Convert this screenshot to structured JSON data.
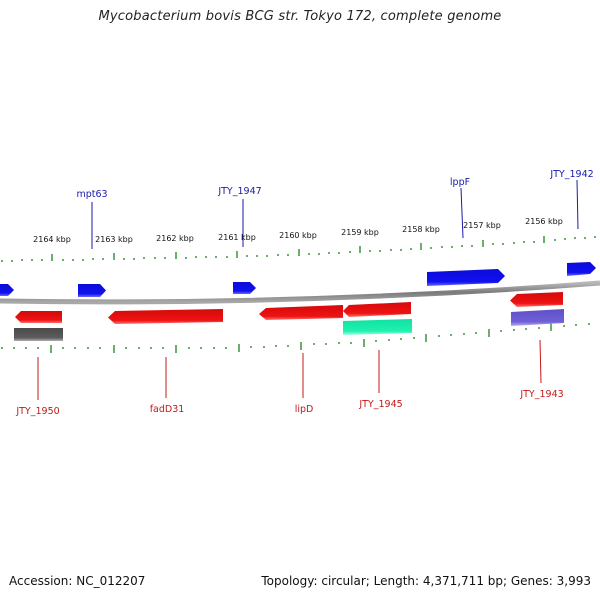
{
  "title": "Mycobacterium bovis BCG str. Tokyo 172, complete genome",
  "footer": {
    "accession": "Accession: NC_012207",
    "summary": "Topology: circular; Length: 4,371,711 bp; Genes: 3,993"
  },
  "ruler": {
    "labels": [
      "2164 kbp",
      "2163 kbp",
      "2162 kbp",
      "2161 kbp",
      "2160 kbp",
      "2159 kbp",
      "2158 kbp",
      "2157 kbp",
      "2156 kbp"
    ]
  },
  "colors": {
    "forward_gene": "#1010e0",
    "reverse_gene": "#e01010",
    "forward_label": "#1a1aa8",
    "reverse_label": "#c41818",
    "tick": "#2e8b2e",
    "backbone": "#8c8c8c"
  },
  "genes": {
    "forward": [
      "mpt63",
      "JTY_1947",
      "lppF",
      "JTY_1942"
    ],
    "reverse": [
      "JTY_1950",
      "fadD31",
      "lipD",
      "JTY_1945",
      "JTY_1943"
    ]
  }
}
